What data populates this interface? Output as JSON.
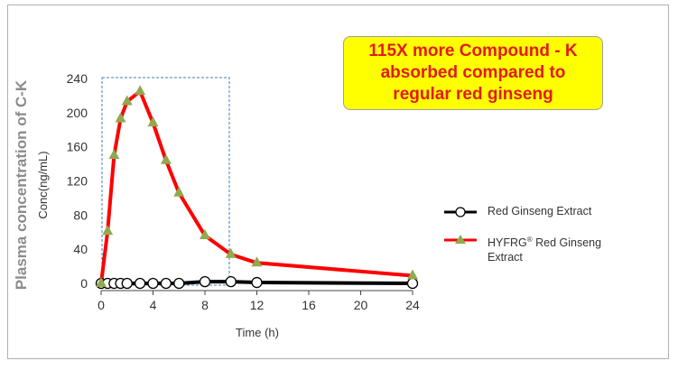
{
  "chart_data": {
    "type": "line",
    "ylabel_outer": "Plasma concentration of C-K",
    "ylabel_inner": "Conc(ng/mL)",
    "xlabel": "Time (h)",
    "xticks": [
      0,
      4,
      8,
      12,
      16,
      20,
      24
    ],
    "yticks": [
      0,
      40,
      80,
      120,
      160,
      200,
      240
    ],
    "xlim": [
      0,
      24
    ],
    "ylim": [
      0,
      240
    ],
    "grid": false,
    "legend_position": "right",
    "callout": [
      "115X more Compound - K",
      "absorbed compared to",
      "regular red ginseng"
    ],
    "series": [
      {
        "name": "Red Ginseng Extract",
        "color": "#000000",
        "marker": "open-circle",
        "x": [
          0,
          0.5,
          1,
          1.5,
          2,
          3,
          4,
          5,
          6,
          8,
          10,
          12,
          24
        ],
        "y": [
          0,
          0,
          0,
          0,
          0,
          0,
          0,
          0,
          0,
          2,
          2,
          1,
          0
        ]
      },
      {
        "name_main": "HYFRG",
        "name_mark": "®",
        "name_rest": " Red Ginseng",
        "name_line2": "Extract",
        "color": "#ff0000",
        "marker_color": "#8faa4f",
        "marker": "triangle",
        "x": [
          0,
          0.5,
          1,
          1.5,
          2,
          3,
          4,
          5,
          6,
          8,
          10,
          12,
          24
        ],
        "y": [
          0,
          61,
          150,
          193,
          213,
          225,
          188,
          144,
          106,
          56,
          34,
          24,
          9
        ]
      }
    ]
  }
}
